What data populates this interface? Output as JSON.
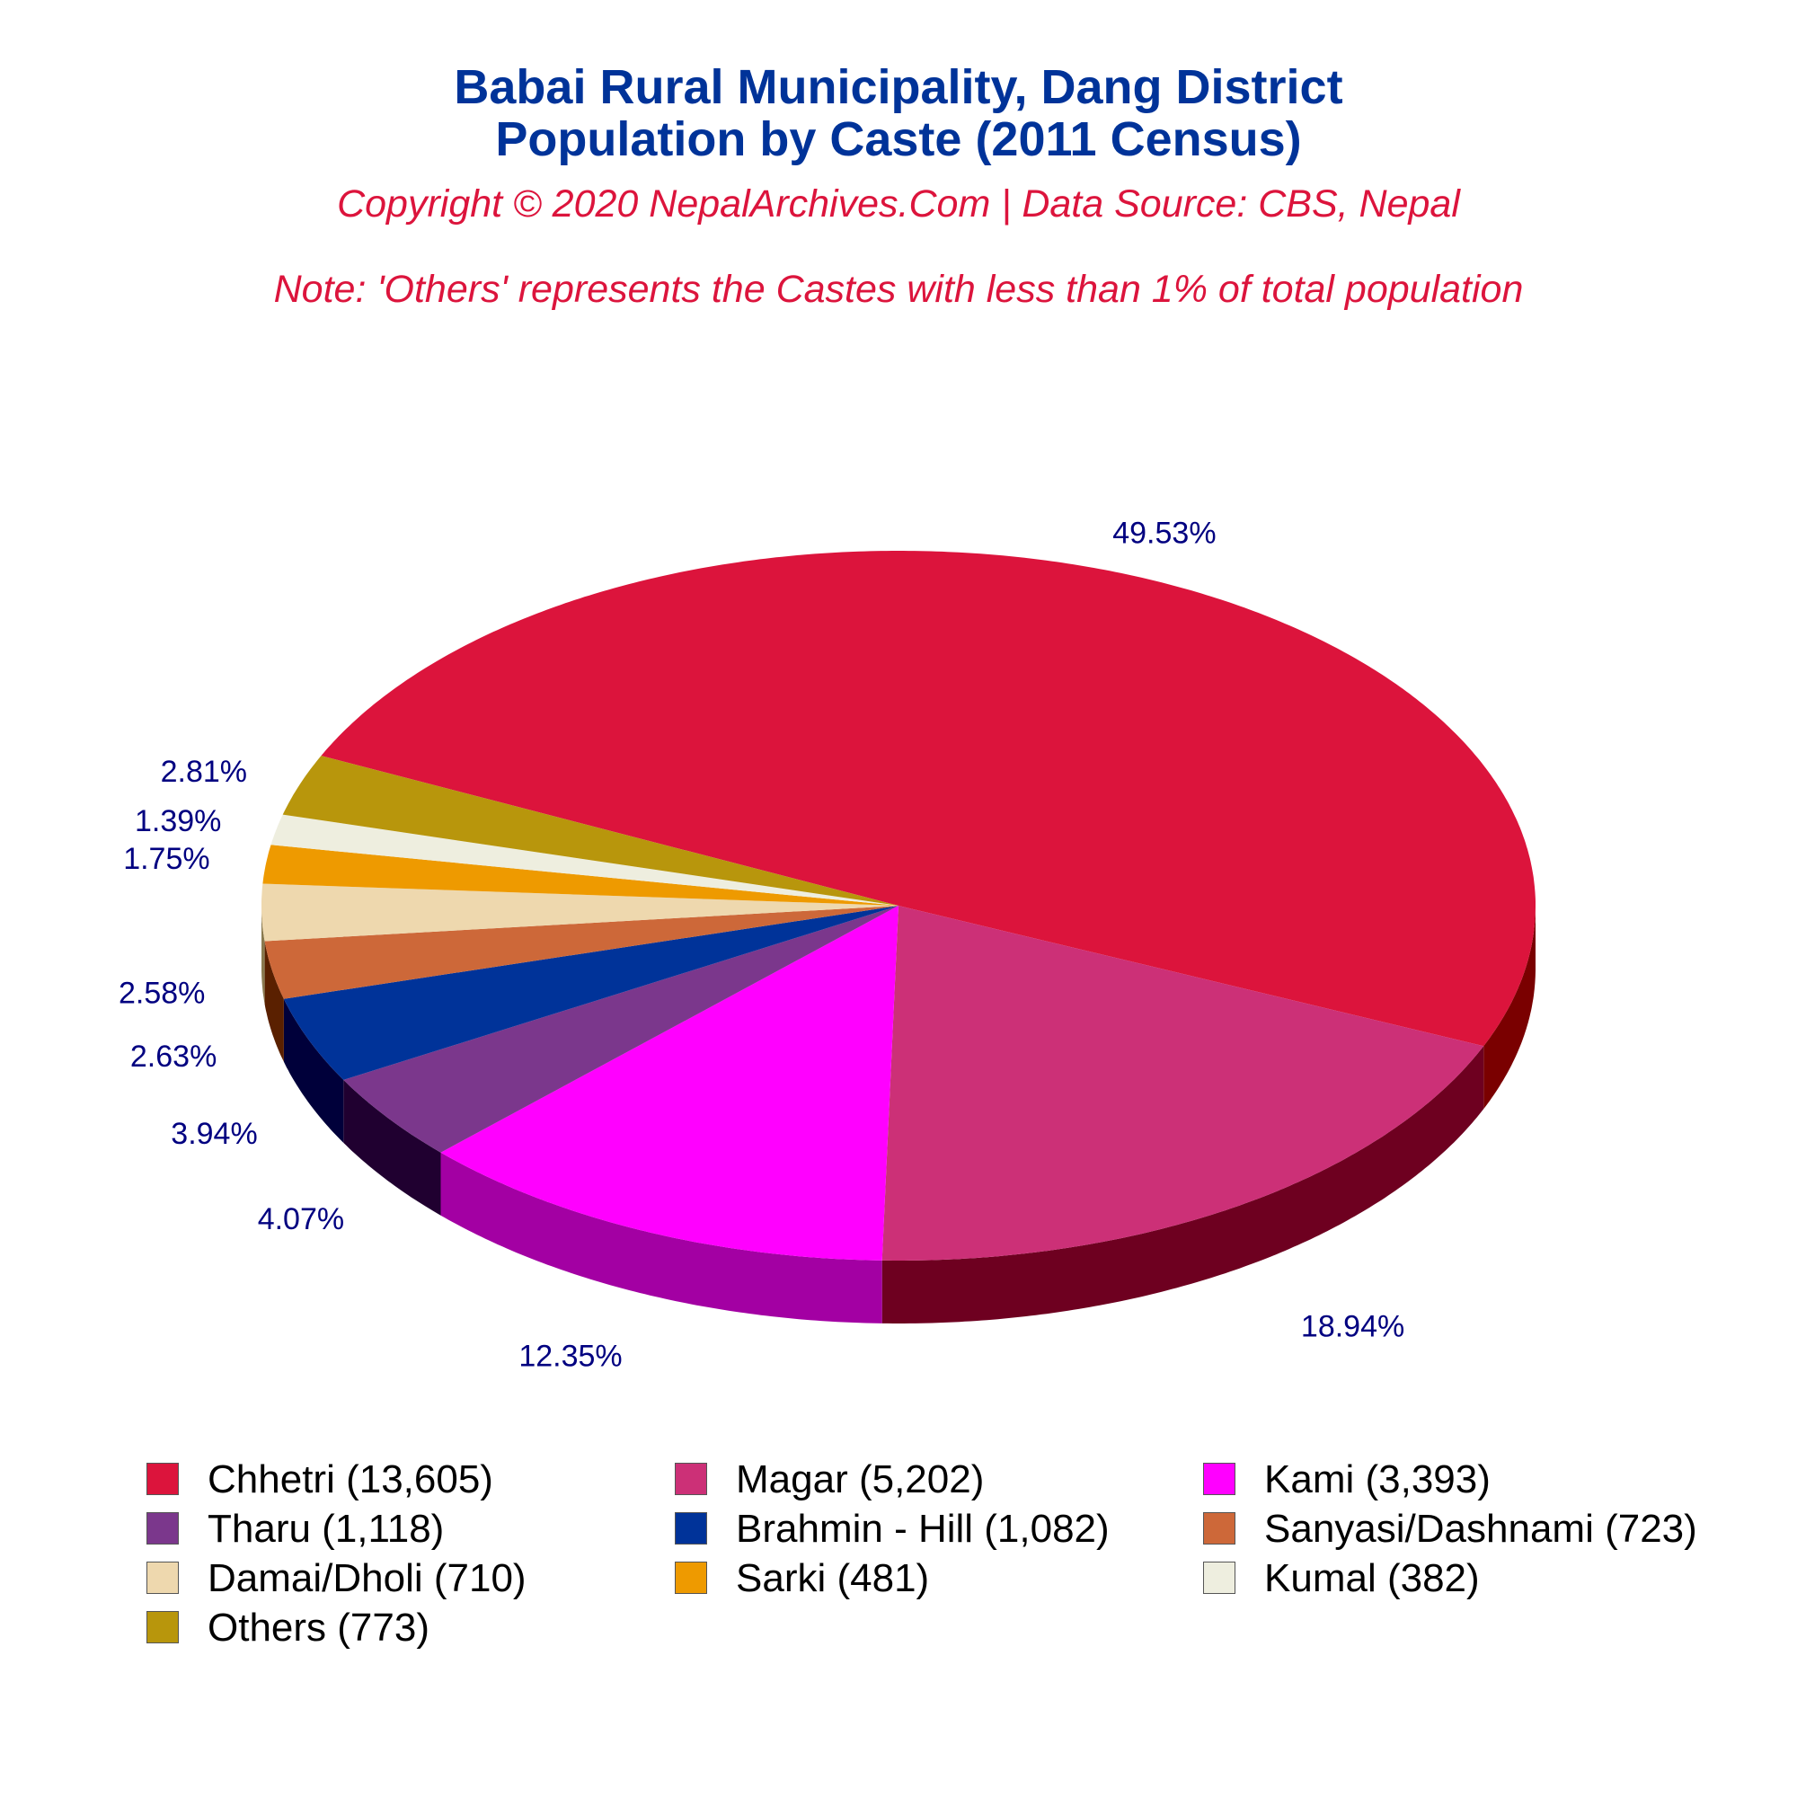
{
  "header": {
    "title_line1": "Babai Rural Municipality, Dang District",
    "title_line2": "Population by Caste (2011 Census)",
    "copyright": "Copyright © 2020 NepalArchives.Com | Data Source: CBS, Nepal",
    "note": "Note: 'Others' represents the Castes with less than 1% of total population"
  },
  "chart_data": {
    "type": "pie",
    "title": "Babai Rural Municipality, Dang District Population by Caste (2011 Census)",
    "style": "3d",
    "slices": [
      {
        "label": "Chhetri (13,605)",
        "value": 13605,
        "percent_label": "49.53%",
        "color": "#dc143c",
        "side_color": "#7a0000"
      },
      {
        "label": "Magar (5,202)",
        "value": 5202,
        "percent_label": "18.94%",
        "color": "#cc3077",
        "side_color": "#6e0020"
      },
      {
        "label": "Kami (3,393)",
        "value": 3393,
        "percent_label": "12.35%",
        "color": "#ff00ff",
        "side_color": "#a300a3"
      },
      {
        "label": "Tharu (1,118)",
        "value": 1118,
        "percent_label": "4.07%",
        "color": "#7b378c",
        "side_color": "#200030"
      },
      {
        "label": "Brahmin - Hill (1,082)",
        "value": 1082,
        "percent_label": "3.94%",
        "color": "#003399",
        "side_color": "#00003a"
      },
      {
        "label": "Sanyasi/Dashnami (723)",
        "value": 723,
        "percent_label": "2.63%",
        "color": "#cd6839",
        "side_color": "#5a2000"
      },
      {
        "label": "Damai/Dholi (710)",
        "value": 710,
        "percent_label": "2.58%",
        "color": "#eed8ae",
        "side_color": "#8a7a50"
      },
      {
        "label": "Sarki (481)",
        "value": 481,
        "percent_label": "1.75%",
        "color": "#ee9a00",
        "side_color": "#7a4a00"
      },
      {
        "label": "Kumal (382)",
        "value": 382,
        "percent_label": "1.39%",
        "color": "#eeeedf",
        "side_color": "#8a8a7a"
      },
      {
        "label": "Others (773)",
        "value": 773,
        "percent_label": "2.81%",
        "color": "#b8960c",
        "side_color": "#5a4800"
      }
    ],
    "label_color": "#000080",
    "legend": {
      "position": "bottom",
      "columns": 3
    }
  }
}
